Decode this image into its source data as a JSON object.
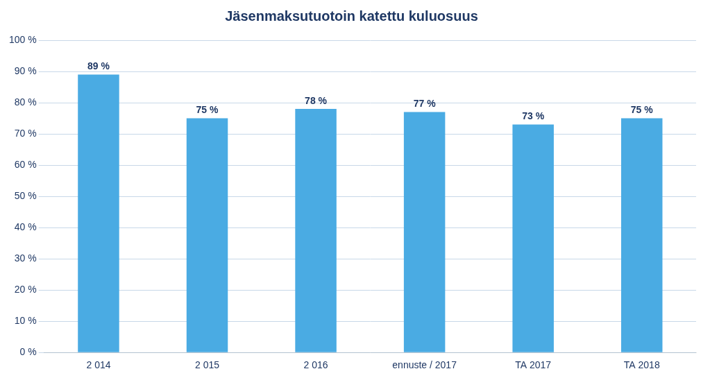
{
  "chart_data": {
    "type": "bar",
    "title": "Jäsenmaksutuotoin katettu kuluosuus",
    "categories": [
      "2 014",
      "2 015",
      "2 016",
      "ennuste / 2017",
      "TA 2017",
      "TA 2018"
    ],
    "values": [
      89,
      75,
      78,
      77,
      73,
      75
    ],
    "value_labels": [
      "89 %",
      "75 %",
      "78 %",
      "77 %",
      "73 %",
      "75 %"
    ],
    "data_labels": true,
    "color": "#4AABE3",
    "ylim": [
      0,
      100
    ],
    "yticks": [
      {
        "value": 0,
        "label": "0 %"
      },
      {
        "value": 10,
        "label": "10 %"
      },
      {
        "value": 20,
        "label": "20 %"
      },
      {
        "value": 30,
        "label": "30 %"
      },
      {
        "value": 40,
        "label": "40 %"
      },
      {
        "value": 50,
        "label": "50 %"
      },
      {
        "value": 60,
        "label": "60 %"
      },
      {
        "value": 70,
        "label": "70 %"
      },
      {
        "value": 80,
        "label": "80 %"
      },
      {
        "value": 90,
        "label": "90 %"
      },
      {
        "value": 100,
        "label": "100 %"
      }
    ],
    "grid": true
  }
}
